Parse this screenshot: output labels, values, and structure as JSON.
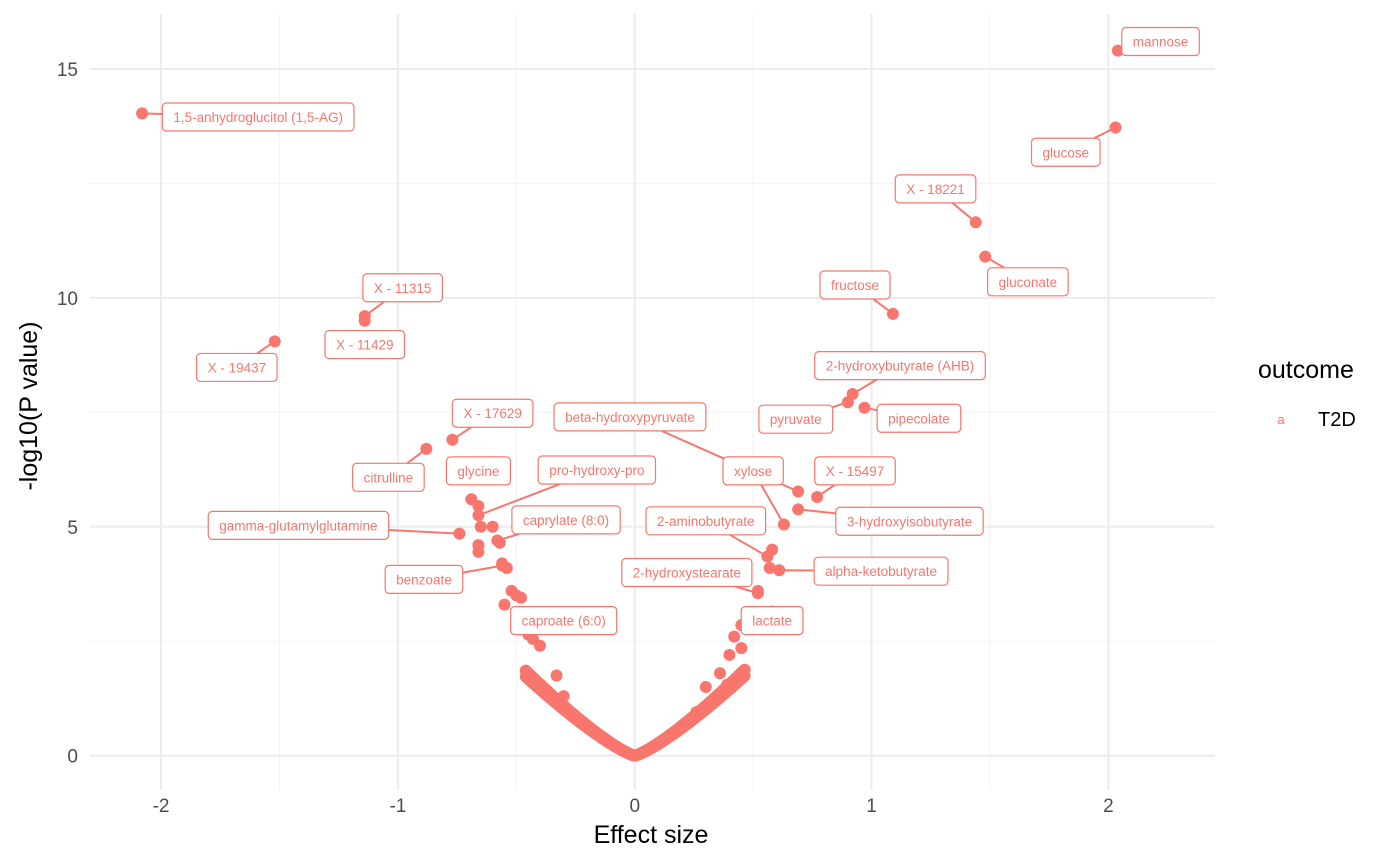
{
  "chart_data": {
    "type": "scatter",
    "xlabel": "Effect size",
    "ylabel": "-log10(P value)",
    "xlim": [
      -2.3,
      2.45
    ],
    "ylim": [
      -0.75,
      16.2
    ],
    "x_ticks": [
      -2,
      -1,
      0,
      1,
      2
    ],
    "x_tick_labels": [
      "-2",
      "-1",
      "0",
      "1",
      "2"
    ],
    "y_ticks": [
      0,
      5,
      10,
      15
    ],
    "y_tick_labels": [
      "0",
      "5",
      "10",
      "15"
    ],
    "grid": true,
    "legend": {
      "title": "outcome",
      "key_glyph": "a",
      "entries": [
        {
          "name": "T2D",
          "color": "#F8766D"
        }
      ],
      "position": "right"
    },
    "point_color": "#F8766D",
    "labeled_points": [
      {
        "label": "mannose",
        "x": 2.04,
        "y": 15.4,
        "lx": 2.22,
        "ly": 15.6
      },
      {
        "label": "1,5-anhydroglucitol (1,5-AG)",
        "x": -2.08,
        "y": 14.03,
        "lx": -1.59,
        "ly": 13.95
      },
      {
        "label": "glucose",
        "x": 2.03,
        "y": 13.72,
        "lx": 1.82,
        "ly": 13.18
      },
      {
        "label": "X - 18221",
        "x": 1.44,
        "y": 11.65,
        "lx": 1.27,
        "ly": 12.38
      },
      {
        "label": "gluconate",
        "x": 1.48,
        "y": 10.9,
        "lx": 1.66,
        "ly": 10.35
      },
      {
        "label": "fructose",
        "x": 1.09,
        "y": 9.65,
        "lx": 0.93,
        "ly": 10.28
      },
      {
        "label": "X - 11315",
        "x": -1.14,
        "y": 9.6,
        "lx": -0.98,
        "ly": 10.22
      },
      {
        "label": "X - 11429",
        "x": -1.14,
        "y": 9.5,
        "lx": -1.14,
        "ly": 8.98
      },
      {
        "label": "X - 19437",
        "x": -1.52,
        "y": 9.05,
        "lx": -1.68,
        "ly": 8.48
      },
      {
        "label": "2-hydroxybutyrate (AHB)",
        "x": 0.92,
        "y": 7.9,
        "lx": 1.12,
        "ly": 8.52
      },
      {
        "label": "pyruvate",
        "x": 0.9,
        "y": 7.72,
        "lx": 0.68,
        "ly": 7.35
      },
      {
        "label": "pipecolate",
        "x": 0.97,
        "y": 7.6,
        "lx": 1.2,
        "ly": 7.37
      },
      {
        "label": "X - 17629",
        "x": -0.77,
        "y": 6.9,
        "lx": -0.6,
        "ly": 7.48
      },
      {
        "label": "beta-hydroxypyruvate",
        "x": 0.69,
        "y": 5.77,
        "lx": -0.02,
        "ly": 7.4
      },
      {
        "label": "glycine",
        "x": -0.69,
        "y": 5.6,
        "lx": -0.66,
        "ly": 6.22
      },
      {
        "label": "citrulline",
        "x": -0.88,
        "y": 6.7,
        "lx": -1.04,
        "ly": 6.08
      },
      {
        "label": "pro-hydroxy-pro",
        "x": -0.66,
        "y": 5.25,
        "lx": -0.16,
        "ly": 6.24
      },
      {
        "label": "xylose",
        "x": 0.63,
        "y": 5.05,
        "lx": 0.5,
        "ly": 6.22
      },
      {
        "label": "X - 15497",
        "x": 0.77,
        "y": 5.65,
        "lx": 0.93,
        "ly": 6.22
      },
      {
        "label": "gamma-glutamylglutamine",
        "x": -0.74,
        "y": 4.85,
        "lx": -1.42,
        "ly": 5.03
      },
      {
        "label": "caprylate (8:0)",
        "x": -0.58,
        "y": 4.7,
        "lx": -0.29,
        "ly": 5.15
      },
      {
        "label": "2-aminobutyrate",
        "x": 0.56,
        "y": 4.35,
        "lx": 0.3,
        "ly": 5.13
      },
      {
        "label": "3-hydroxyisobutyrate",
        "x": 0.69,
        "y": 5.38,
        "lx": 1.16,
        "ly": 5.12
      },
      {
        "label": "benzoate",
        "x": -0.56,
        "y": 4.15,
        "lx": -0.89,
        "ly": 3.85
      },
      {
        "label": "2-hydroxystearate",
        "x": 0.52,
        "y": 3.55,
        "lx": 0.22,
        "ly": 4.0
      },
      {
        "label": "alpha-ketobutyrate",
        "x": 0.61,
        "y": 4.05,
        "lx": 1.04,
        "ly": 4.03
      },
      {
        "label": "caproate (6:0)",
        "x": -0.39,
        "y": 3.0,
        "lx": -0.3,
        "ly": 2.95
      },
      {
        "label": "lactate",
        "x": 0.58,
        "y": 3.15,
        "lx": 0.58,
        "ly": 2.95
      }
    ],
    "extra_points": [
      [
        -0.66,
        5.45
      ],
      [
        -0.65,
        5.0
      ],
      [
        -0.6,
        5.0
      ],
      [
        -0.66,
        4.6
      ],
      [
        -0.66,
        4.45
      ],
      [
        -0.57,
        4.65
      ],
      [
        -0.56,
        4.2
      ],
      [
        -0.54,
        4.1
      ],
      [
        -0.52,
        3.6
      ],
      [
        -0.5,
        3.5
      ],
      [
        -0.48,
        3.45
      ],
      [
        -0.55,
        3.3
      ],
      [
        0.58,
        4.5
      ],
      [
        0.57,
        4.1
      ],
      [
        0.52,
        3.6
      ],
      [
        0.45,
        2.35
      ],
      [
        0.39,
        1.55
      ],
      [
        0.45,
        2.85
      ],
      [
        -0.33,
        1.75
      ],
      [
        -0.3,
        1.3
      ],
      [
        -0.24,
        0.78
      ],
      [
        0.26,
        0.95
      ],
      [
        0.3,
        1.5
      ],
      [
        0.36,
        1.8
      ],
      [
        0.42,
        2.6
      ],
      [
        0.4,
        2.2
      ],
      [
        -0.4,
        2.4
      ],
      [
        -0.45,
        2.65
      ],
      [
        -0.43,
        2.55
      ]
    ]
  }
}
